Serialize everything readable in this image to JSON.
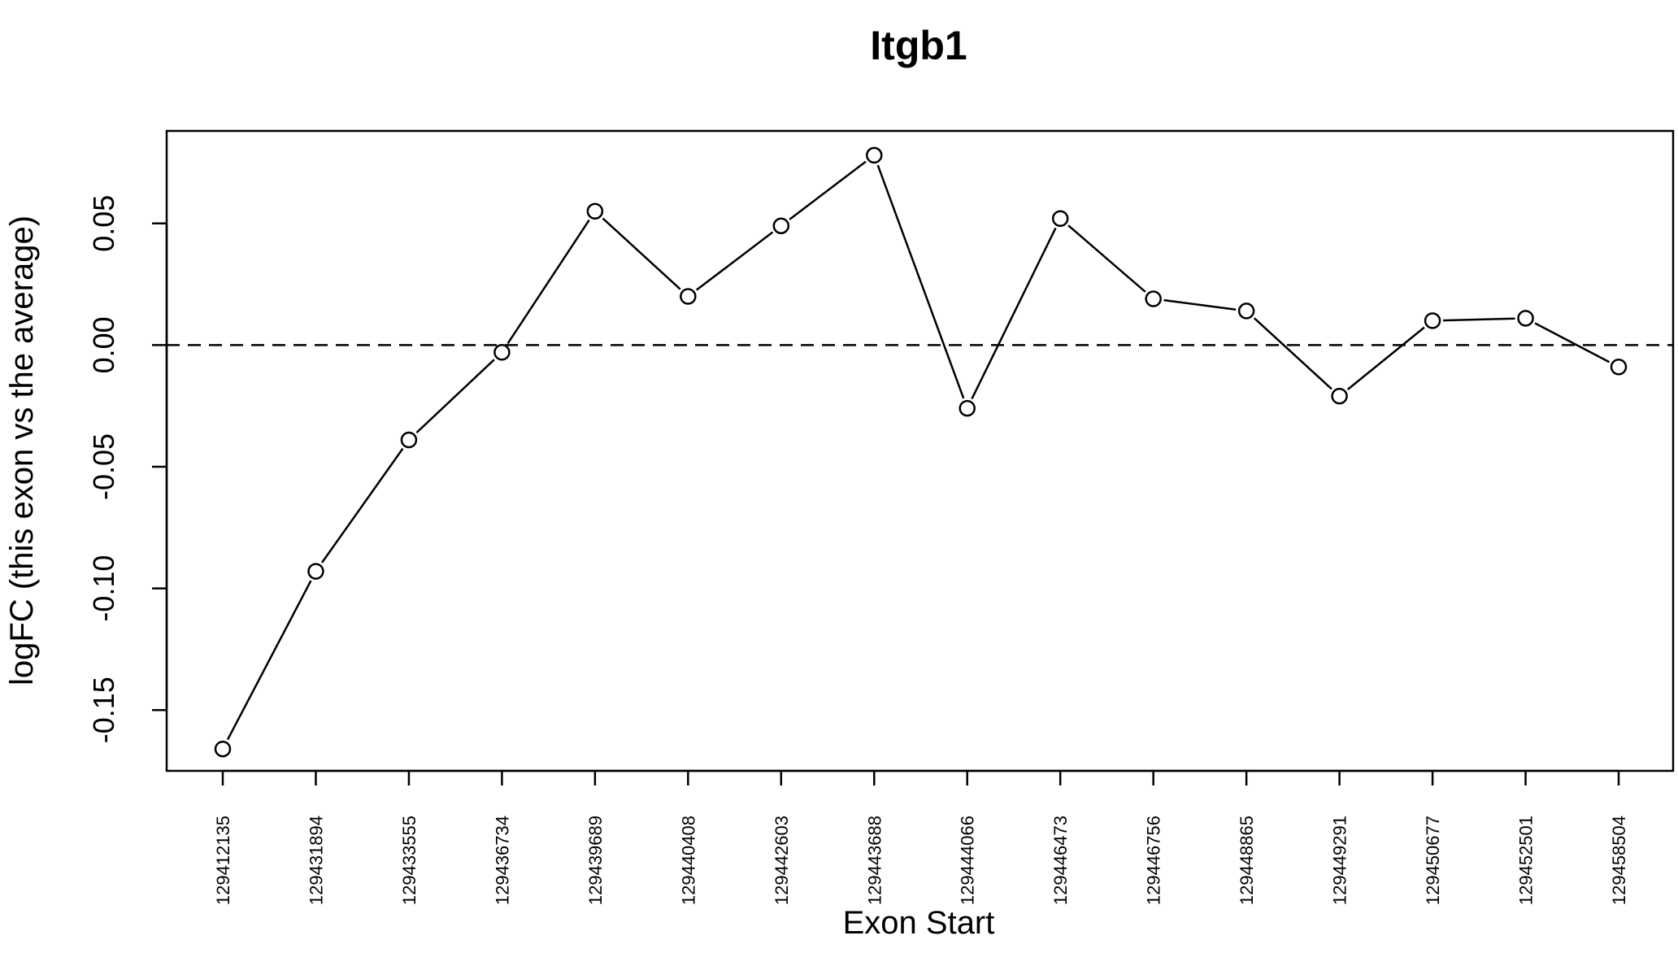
{
  "chart_data": {
    "type": "line",
    "title": "Itgb1",
    "xlabel": "Exon Start",
    "ylabel": "logFC (this exon vs the average)",
    "categories": [
      "129412135",
      "129431894",
      "129433555",
      "129436734",
      "129439689",
      "129440408",
      "129442603",
      "129443688",
      "129444066",
      "129446473",
      "129446756",
      "129448865",
      "129449291",
      "129450677",
      "129452501",
      "129458504"
    ],
    "series": [
      {
        "values": [
          -0.166,
          -0.093,
          -0.039,
          -0.003,
          0.055,
          0.02,
          0.049,
          0.078,
          -0.026,
          0.052,
          0.019,
          0.014,
          -0.021,
          0.01,
          0.011,
          -0.009
        ]
      }
    ],
    "yticks": [
      -0.15,
      -0.1,
      -0.05,
      0.0,
      0.05
    ],
    "ytick_labels": [
      "-0.15",
      "-0.10",
      "-0.05",
      "0.00",
      "0.05"
    ],
    "ylim": [
      -0.175,
      0.088
    ],
    "reference_line": {
      "y": 0.0,
      "style": "dashed"
    },
    "marker": "open-circle",
    "line_color": "#000000",
    "grid": false,
    "legend": "none"
  }
}
